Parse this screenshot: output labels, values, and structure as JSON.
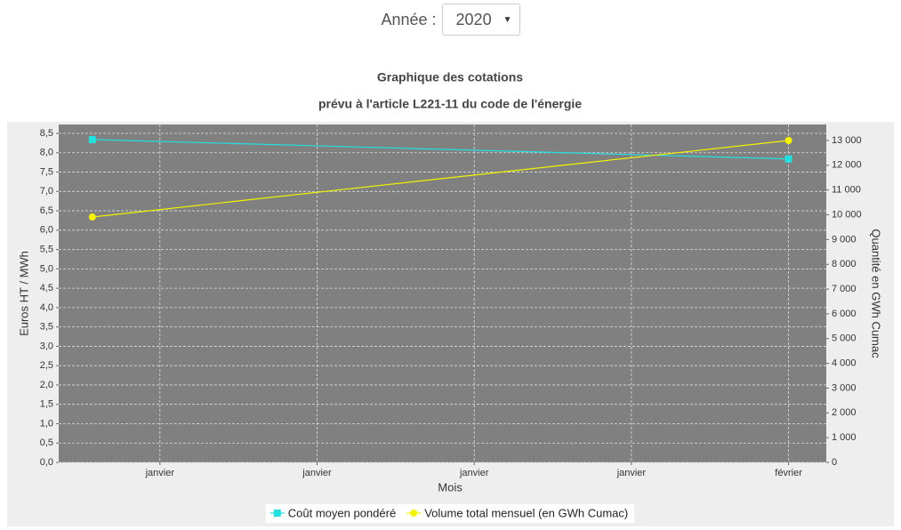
{
  "year_selector": {
    "label": "Année :",
    "value": "2020"
  },
  "chart_data": {
    "type": "line",
    "title": "Graphique des cotations",
    "subtitle": "prévu à l'article L221-11 du code de l'énergie",
    "x_label": "Mois",
    "y_label": "Euros HT / MWh",
    "y2_label": "Quantité en GWh Cumac",
    "xlim": [
      0.356,
      5.24
    ],
    "xticks": [
      {
        "value": 1,
        "label": "janvier"
      },
      {
        "value": 2,
        "label": "janvier"
      },
      {
        "value": 3,
        "label": "janvier"
      },
      {
        "value": 4,
        "label": "janvier"
      },
      {
        "value": 5,
        "label": "février"
      }
    ],
    "ylim": [
      0,
      8.73
    ],
    "yticks": [
      {
        "value": 0,
        "label": "0,0"
      },
      {
        "value": 0.5,
        "label": "0,5"
      },
      {
        "value": 1,
        "label": "1,0"
      },
      {
        "value": 1.5,
        "label": "1,5"
      },
      {
        "value": 2,
        "label": "2,0"
      },
      {
        "value": 2.5,
        "label": "2,5"
      },
      {
        "value": 3,
        "label": "3,0"
      },
      {
        "value": 3.5,
        "label": "3,5"
      },
      {
        "value": 4,
        "label": "4,0"
      },
      {
        "value": 4.5,
        "label": "4,5"
      },
      {
        "value": 5,
        "label": "5,0"
      },
      {
        "value": 5.5,
        "label": "5,5"
      },
      {
        "value": 6,
        "label": "6,0"
      },
      {
        "value": 6.5,
        "label": "6,5"
      },
      {
        "value": 7,
        "label": "7,0"
      },
      {
        "value": 7.5,
        "label": "7,5"
      },
      {
        "value": 8,
        "label": "8,0"
      },
      {
        "value": 8.5,
        "label": "8,5"
      }
    ],
    "y2lim": [
      0,
      13646
    ],
    "y2ticks": [
      0,
      {
        "value": 1000,
        "label": "1 000"
      },
      {
        "value": 2000,
        "label": "2 000"
      },
      {
        "value": 3000,
        "label": "3 000"
      },
      {
        "value": 4000,
        "label": "4 000"
      },
      {
        "value": 5000,
        "label": "5 000"
      },
      {
        "value": 6000,
        "label": "6 000"
      },
      {
        "value": 7000,
        "label": "7 000"
      },
      {
        "value": 8000,
        "label": "8 000"
      },
      {
        "value": 9000,
        "label": "9 000"
      },
      {
        "value": 10000,
        "label": "10 000"
      },
      {
        "value": 11000,
        "label": "11 000"
      },
      {
        "value": 12000,
        "label": "12 000"
      },
      {
        "value": 13000,
        "label": "13 000"
      }
    ],
    "grid": true,
    "legend": "bottom",
    "series": [
      {
        "name": "Coût moyen pondéré",
        "color": "#22e0e0",
        "marker": "square",
        "x": [
          0.57,
          5
        ],
        "values": [
          8.34,
          7.84
        ]
      },
      {
        "name": "Volume total mensuel (en GWh Cumac)",
        "color": "#f4f400",
        "marker": "circle",
        "axis": "y2",
        "x": [
          0.57,
          5
        ],
        "values": [
          9910,
          13000
        ]
      }
    ]
  }
}
